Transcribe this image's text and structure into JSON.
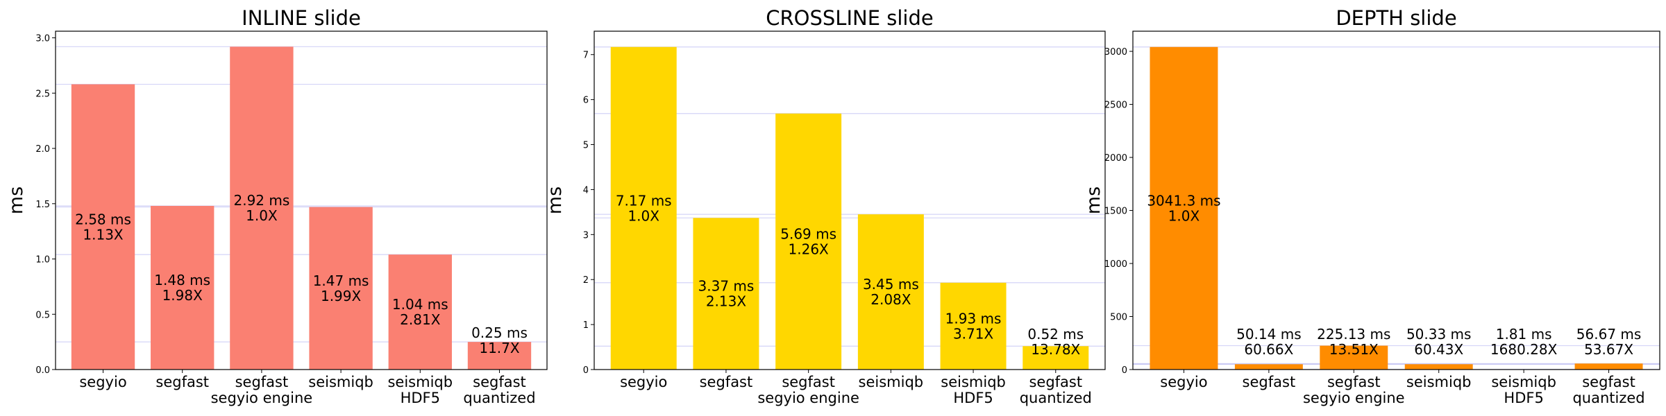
{
  "chart_data": [
    {
      "type": "bar",
      "title": "INLINE slide",
      "ylabel": "ms",
      "xlabel": "",
      "ylim": [
        0,
        3.06
      ],
      "yticks": [
        "0.0",
        "0.5",
        "1.0",
        "1.5",
        "2.0",
        "2.5",
        "3.0"
      ],
      "ytick_values": [
        0,
        0.5,
        1.0,
        1.5,
        2.0,
        2.5,
        3.0
      ],
      "color": "#fa8072",
      "categories": [
        [
          "segyio"
        ],
        [
          "segfast"
        ],
        [
          "segfast",
          "segyio engine"
        ],
        [
          "seismiqb"
        ],
        [
          "seismiqb",
          "HDF5"
        ],
        [
          "segfast",
          "quantized"
        ]
      ],
      "values": [
        2.58,
        1.48,
        2.92,
        1.47,
        1.04,
        0.25
      ],
      "labels": [
        [
          "2.58 ms",
          "1.13X"
        ],
        [
          "1.48 ms",
          "1.98X"
        ],
        [
          "2.92 ms",
          "1.0X"
        ],
        [
          "1.47 ms",
          "1.99X"
        ],
        [
          "1.04 ms",
          "2.81X"
        ],
        [
          "0.25 ms",
          "11.7X"
        ]
      ],
      "grid": "horizontal lines at each bar value"
    },
    {
      "type": "bar",
      "title": "CROSSLINE slide",
      "ylabel": "ms",
      "xlabel": "",
      "ylim": [
        0,
        7.52
      ],
      "yticks": [
        "0",
        "1",
        "2",
        "3",
        "4",
        "5",
        "6",
        "7"
      ],
      "ytick_values": [
        0,
        1,
        2,
        3,
        4,
        5,
        6,
        7
      ],
      "color": "#ffd700",
      "categories": [
        [
          "segyio"
        ],
        [
          "segfast"
        ],
        [
          "segfast",
          "segyio engine"
        ],
        [
          "seismiqb"
        ],
        [
          "seismiqb",
          "HDF5"
        ],
        [
          "segfast",
          "quantized"
        ]
      ],
      "values": [
        7.17,
        3.37,
        5.69,
        3.45,
        1.93,
        0.52
      ],
      "labels": [
        [
          "7.17 ms",
          "1.0X"
        ],
        [
          "3.37 ms",
          "2.13X"
        ],
        [
          "5.69 ms",
          "1.26X"
        ],
        [
          "3.45 ms",
          "2.08X"
        ],
        [
          "1.93 ms",
          "3.71X"
        ],
        [
          "0.52 ms",
          "13.78X"
        ]
      ],
      "grid": "horizontal lines at each bar value"
    },
    {
      "type": "bar",
      "title": "DEPTH slide",
      "ylabel": "ms",
      "xlabel": "",
      "ylim": [
        0,
        3190
      ],
      "yticks": [
        "0",
        "500",
        "1000",
        "1500",
        "2000",
        "2500",
        "3000"
      ],
      "ytick_values": [
        0,
        500,
        1000,
        1500,
        2000,
        2500,
        3000
      ],
      "color": "#ff8c00",
      "categories": [
        [
          "segyio"
        ],
        [
          "segfast"
        ],
        [
          "segfast",
          "segyio engine"
        ],
        [
          "seismiqb"
        ],
        [
          "seismiqb",
          "HDF5"
        ],
        [
          "segfast",
          "quantized"
        ]
      ],
      "values": [
        3041.3,
        50.14,
        225.13,
        50.33,
        1.81,
        56.67
      ],
      "labels": [
        [
          "3041.3 ms",
          "1.0X"
        ],
        [
          "50.14 ms",
          "60.66X"
        ],
        [
          "225.13 ms",
          "13.51X"
        ],
        [
          "50.33 ms",
          "60.43X"
        ],
        [
          "1.81 ms",
          "1680.28X"
        ],
        [
          "56.67 ms",
          "53.67X"
        ]
      ],
      "grid": "horizontal lines at each bar value"
    }
  ]
}
